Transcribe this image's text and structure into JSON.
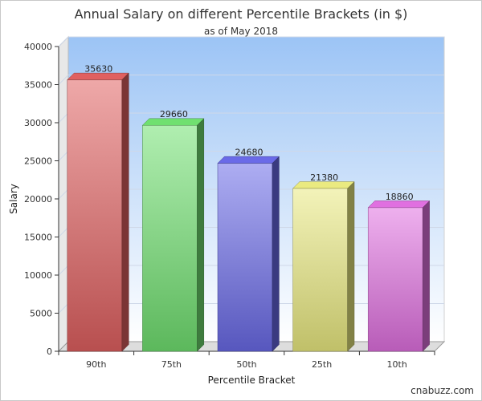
{
  "chart_data": {
    "type": "bar",
    "title": "Annual Salary on different Percentile Brackets (in $)",
    "subtitle": "as of May 2018",
    "xlabel": "Percentile Bracket",
    "ylabel": "Salary",
    "categories": [
      "90th",
      "75th",
      "50th",
      "25th",
      "10th"
    ],
    "values": [
      35630,
      29660,
      24680,
      21380,
      18860
    ],
    "data_labels": [
      "35630",
      "29660",
      "24680",
      "21380",
      "18860"
    ],
    "ylim": [
      0,
      40000
    ],
    "yticks": [
      0,
      5000,
      10000,
      15000,
      20000,
      25000,
      30000,
      35000,
      40000
    ],
    "ytick_labels": [
      "0",
      "5000",
      "10000",
      "15000",
      "20000",
      "25000",
      "30000",
      "35000",
      "40000"
    ],
    "grid": true,
    "bar_colors": [
      "#e06060",
      "#70e070",
      "#6a6ae8",
      "#eaea80",
      "#e070e0"
    ]
  },
  "credit": "cnabuzz.com"
}
